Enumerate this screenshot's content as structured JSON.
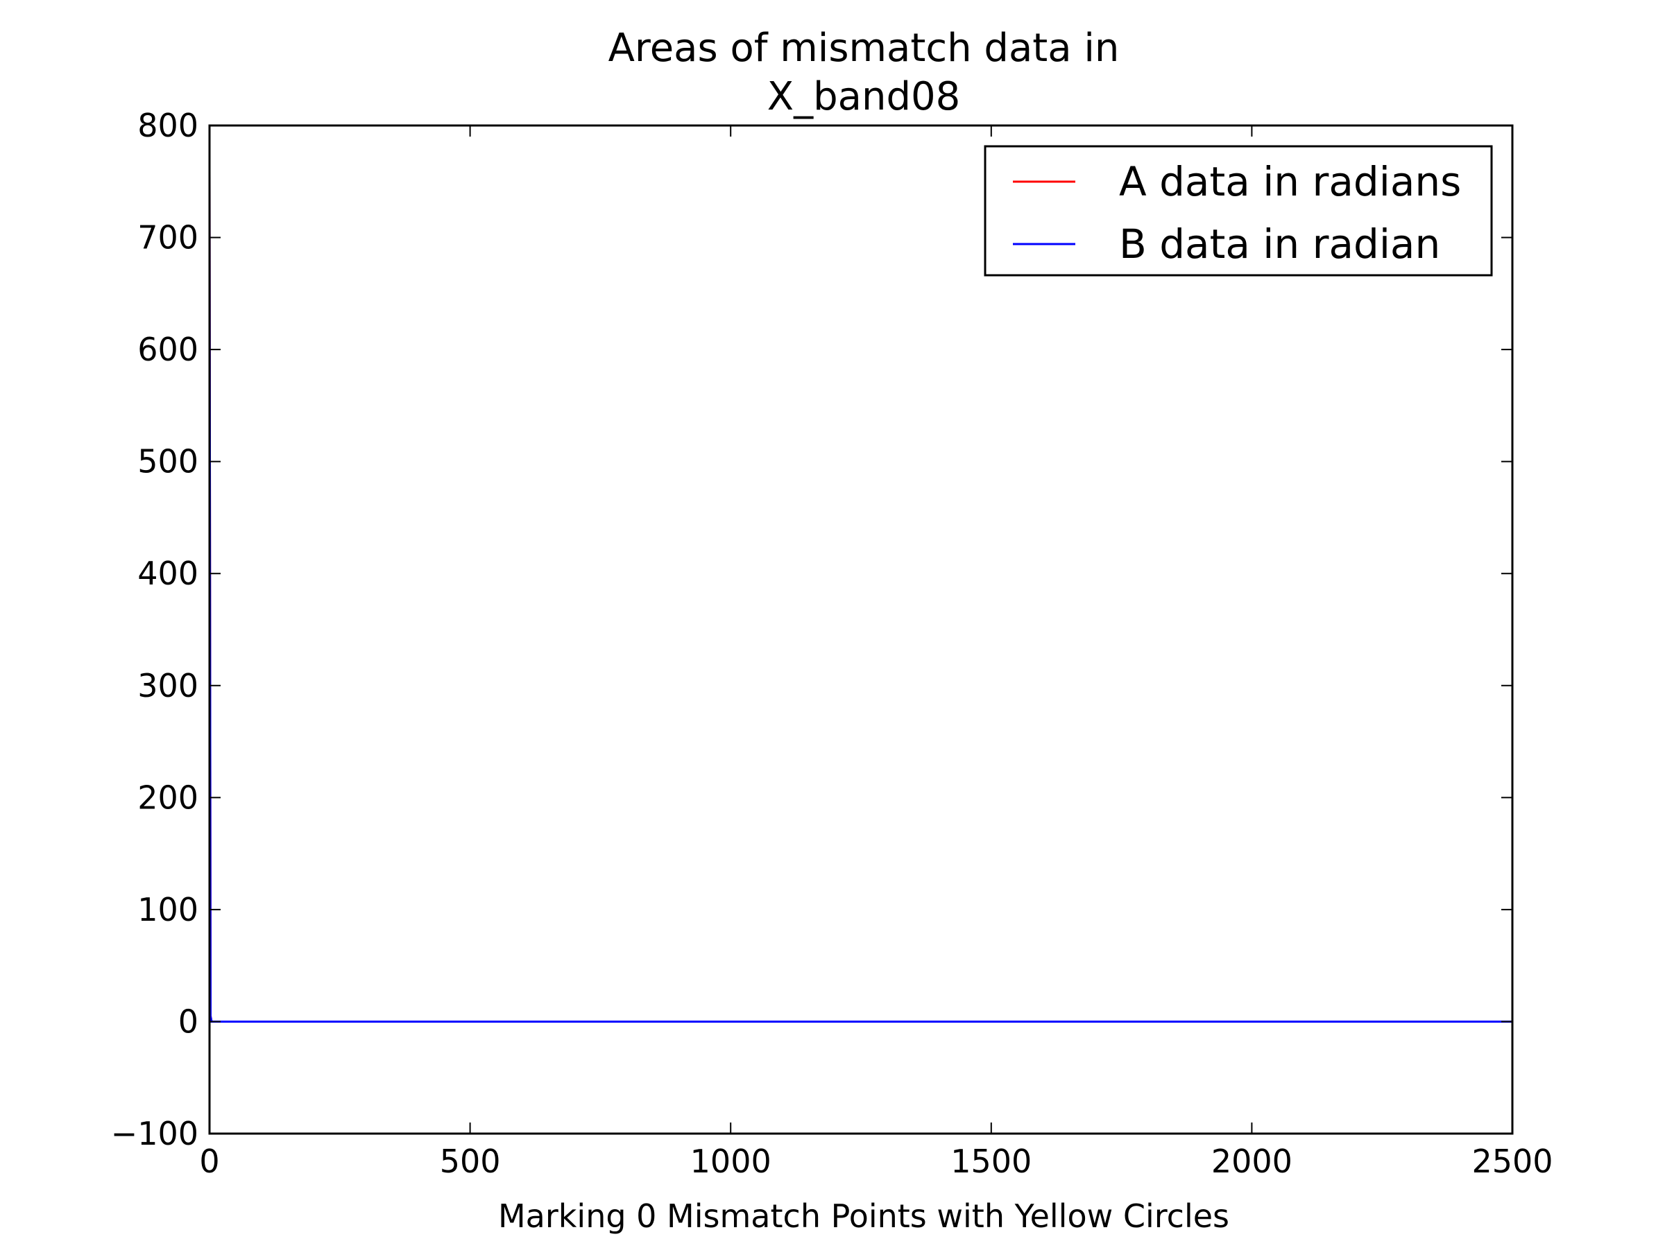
{
  "chart_data": {
    "type": "line",
    "title_lines": [
      "Areas of mismatch data in",
      "X_band08"
    ],
    "xlabel": "Marking 0 Mismatch Points with Yellow Circles",
    "ylabel": "",
    "xlim": [
      0,
      2500
    ],
    "ylim": [
      -100,
      800
    ],
    "x_ticks": [
      0,
      500,
      1000,
      1500,
      2000,
      2500
    ],
    "x_tick_labels": [
      "0",
      "500",
      "1000",
      "1500",
      "2000",
      "2500"
    ],
    "y_ticks": [
      -100,
      0,
      100,
      200,
      300,
      400,
      500,
      600,
      700,
      800
    ],
    "y_tick_labels": [
      "−100",
      "0",
      "100",
      "200",
      "300",
      "400",
      "500",
      "600",
      "700",
      "800"
    ],
    "grid": false,
    "legend_position": "top-right",
    "series": [
      {
        "name": "A data in radians",
        "color": "#ff0000",
        "x": [
          0,
          2,
          4,
          2500
        ],
        "y": [
          760,
          5,
          0,
          0
        ]
      },
      {
        "name": "B data in radian",
        "color": "#0000ff",
        "x": [
          0,
          2,
          4,
          2500
        ],
        "y": [
          760,
          5,
          0,
          0
        ]
      }
    ]
  }
}
